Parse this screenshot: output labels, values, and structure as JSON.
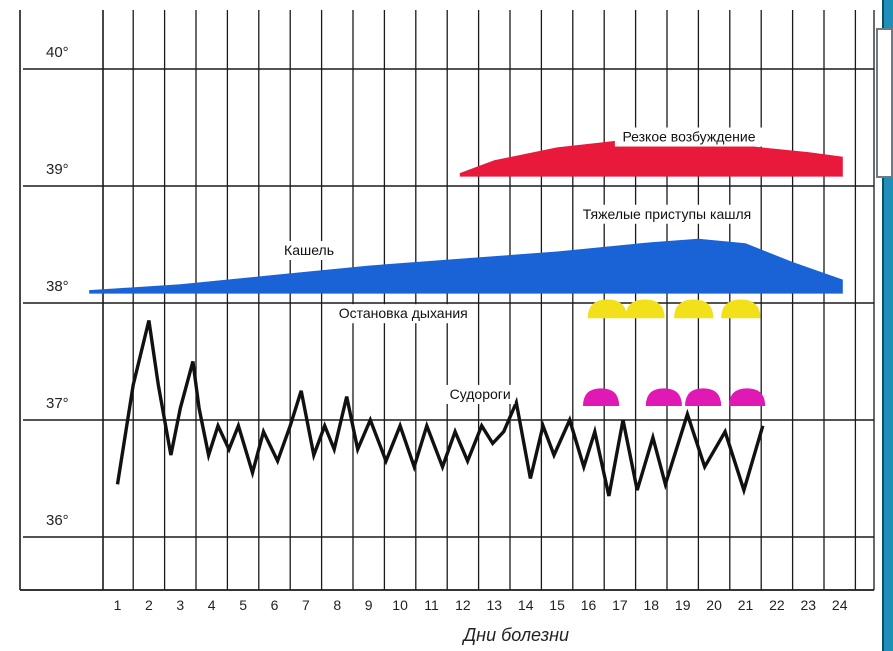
{
  "chart_data": {
    "type": "line",
    "title": "",
    "xlabel": "Дни болезни",
    "ylabel": "",
    "x_ticks": [
      1,
      2,
      3,
      4,
      5,
      6,
      7,
      8,
      9,
      10,
      11,
      12,
      13,
      14,
      15,
      16,
      17,
      18,
      19,
      20,
      21,
      22,
      23,
      24
    ],
    "y_ticks": [
      {
        "value": 36,
        "label": "36°"
      },
      {
        "value": 37,
        "label": "37°"
      },
      {
        "value": 38,
        "label": "38°"
      },
      {
        "value": 39,
        "label": "39°"
      },
      {
        "value": 40,
        "label": "40°"
      }
    ],
    "xlim": [
      0.0,
      24.1
    ],
    "ylim": [
      35.45,
      40.45
    ],
    "grid": true,
    "temperature": {
      "color": "#111111",
      "points": [
        [
          1.0,
          36.45
        ],
        [
          1.5,
          37.3
        ],
        [
          2.0,
          37.85
        ],
        [
          2.3,
          37.3
        ],
        [
          2.7,
          36.7
        ],
        [
          3.0,
          37.1
        ],
        [
          3.4,
          37.5
        ],
        [
          3.6,
          37.1
        ],
        [
          3.9,
          36.7
        ],
        [
          4.2,
          36.95
        ],
        [
          4.55,
          36.75
        ],
        [
          4.85,
          36.95
        ],
        [
          5.3,
          36.55
        ],
        [
          5.65,
          36.9
        ],
        [
          6.1,
          36.65
        ],
        [
          6.5,
          36.95
        ],
        [
          6.85,
          37.25
        ],
        [
          7.25,
          36.7
        ],
        [
          7.6,
          36.95
        ],
        [
          7.9,
          36.75
        ],
        [
          8.3,
          37.2
        ],
        [
          8.65,
          36.75
        ],
        [
          9.05,
          37.0
        ],
        [
          9.55,
          36.65
        ],
        [
          10.0,
          36.95
        ],
        [
          10.45,
          36.6
        ],
        [
          10.85,
          36.95
        ],
        [
          11.35,
          36.6
        ],
        [
          11.75,
          36.9
        ],
        [
          12.15,
          36.65
        ],
        [
          12.6,
          36.95
        ],
        [
          12.95,
          36.8
        ],
        [
          13.3,
          36.9
        ],
        [
          13.7,
          37.15
        ],
        [
          14.15,
          36.5
        ],
        [
          14.55,
          36.95
        ],
        [
          14.9,
          36.7
        ],
        [
          15.4,
          37.0
        ],
        [
          15.85,
          36.6
        ],
        [
          16.2,
          36.9
        ],
        [
          16.65,
          36.35
        ],
        [
          17.1,
          37.0
        ],
        [
          17.55,
          36.4
        ],
        [
          18.05,
          36.85
        ],
        [
          18.45,
          36.45
        ],
        [
          19.15,
          37.05
        ],
        [
          19.7,
          36.6
        ],
        [
          20.35,
          36.9
        ],
        [
          20.95,
          36.4
        ],
        [
          21.55,
          36.95
        ]
      ]
    },
    "annotations": [
      {
        "name": "Резкое возбуждение",
        "color": "#e8193b",
        "label_at": [
          19.2,
          39.38
        ]
      },
      {
        "name": "Тяжелые приступы кашля",
        "color": "#1a63d6",
        "label_at": [
          18.5,
          38.72
        ]
      },
      {
        "name": "Кашель",
        "color": "#1a63d6",
        "label_at": [
          7.1,
          38.41
        ]
      },
      {
        "name": "Остановка дыхания",
        "color": "#f2e11a",
        "label_at": [
          10.1,
          37.87
        ]
      },
      {
        "name": "Судороги",
        "color": "#e018b4",
        "label_at": [
          12.55,
          37.18
        ]
      }
    ],
    "cough_band": {
      "color": "#1a63d6",
      "x_start": 0.1,
      "x_end": 24.1,
      "top": [
        [
          0.1,
          38.11
        ],
        [
          3.0,
          38.16
        ],
        [
          6.0,
          38.24
        ],
        [
          9.0,
          38.32
        ],
        [
          12.0,
          38.38
        ],
        [
          15.0,
          38.44
        ],
        [
          18.0,
          38.52
        ],
        [
          19.5,
          38.55
        ],
        [
          21.0,
          38.51
        ],
        [
          22.5,
          38.35
        ],
        [
          24.1,
          38.2
        ]
      ],
      "bottom": [
        [
          0.1,
          38.08
        ],
        [
          24.1,
          38.08
        ]
      ]
    },
    "agitation_band": {
      "color": "#e8193b",
      "x_start": 11.9,
      "x_end": 24.1,
      "top": [
        [
          11.9,
          39.11
        ],
        [
          13.0,
          39.22
        ],
        [
          15.0,
          39.33
        ],
        [
          17.0,
          39.39
        ],
        [
          18.5,
          39.4
        ],
        [
          20.0,
          39.38
        ],
        [
          21.5,
          39.33
        ],
        [
          23.0,
          39.29
        ],
        [
          24.1,
          39.25
        ]
      ],
      "bottom": [
        [
          11.9,
          39.08
        ],
        [
          24.1,
          39.08
        ]
      ]
    },
    "apnea_episodes": {
      "color": "#f2e11a",
      "base": 37.87,
      "height": 0.16,
      "centers": [
        16.6,
        17.8,
        19.35,
        20.85
      ],
      "width": 1.25
    },
    "seizure_episodes": {
      "color": "#e018b4",
      "base": 37.12,
      "height": 0.15,
      "centers": [
        16.4,
        18.4,
        19.65,
        21.05
      ],
      "width": 1.15
    }
  }
}
